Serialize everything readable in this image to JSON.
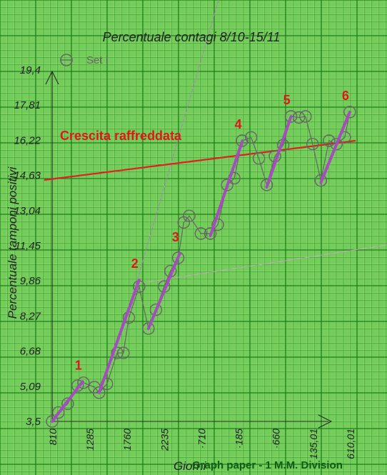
{
  "chart_data": {
    "type": "scatter",
    "title": "Percentuale contagi 8/10-15/11",
    "xlabel": "Giorni",
    "ylabel": "Percentuale tamponi positivi",
    "legend": {
      "label": "Set I",
      "position": "top-left"
    },
    "x_ticks": [
      "810",
      "1285",
      "1760",
      "2235",
      "2710",
      "3185",
      "3660",
      "4135,01",
      "4610,01"
    ],
    "x_tick_display": [
      "810",
      "1285",
      "1760",
      "2235",
      "·710",
      "·185",
      "·660",
      "135,01",
      "610,01"
    ],
    "y_ticks": [
      "3,5",
      "5,09",
      "6,68",
      "8,27",
      "9,86",
      "11,45",
      "13,04",
      "14,63",
      "16,22",
      "17,81",
      "19,4"
    ],
    "xlim": [
      810,
      5085
    ],
    "ylim": [
      3.5,
      19.4
    ],
    "grid": true,
    "series": [
      {
        "name": "Set I",
        "color": "#666666",
        "marker": "open-circle",
        "points": [
          [
            810,
            3.5
          ],
          [
            890,
            3.9
          ],
          [
            1010,
            4.3
          ],
          [
            1135,
            5.12
          ],
          [
            1210,
            5.25
          ],
          [
            1350,
            5.05
          ],
          [
            1410,
            4.8
          ],
          [
            1510,
            5.2
          ],
          [
            1640,
            6.6
          ],
          [
            1720,
            6.6
          ],
          [
            1790,
            8.2
          ],
          [
            1920,
            9.6
          ],
          [
            2040,
            7.7
          ],
          [
            2135,
            8.55
          ],
          [
            2240,
            9.6
          ],
          [
            2320,
            10.3
          ],
          [
            2420,
            10.9
          ],
          [
            2490,
            12.5
          ],
          [
            2560,
            12.8
          ],
          [
            2710,
            12.0
          ],
          [
            2830,
            12.0
          ],
          [
            2925,
            12.4
          ],
          [
            3045,
            14.2
          ],
          [
            3135,
            14.5
          ],
          [
            3235,
            16.2
          ],
          [
            3350,
            16.35
          ],
          [
            3450,
            15.4
          ],
          [
            3550,
            14.2
          ],
          [
            3655,
            15.5
          ],
          [
            3760,
            16.0
          ],
          [
            3860,
            17.3
          ],
          [
            3960,
            17.25
          ],
          [
            4045,
            17.3
          ],
          [
            4135,
            16.05
          ],
          [
            4240,
            14.4
          ],
          [
            4345,
            16.2
          ],
          [
            4440,
            16.05
          ],
          [
            4545,
            16.35
          ],
          [
            4610,
            17.5
          ]
        ]
      }
    ],
    "trend_line": {
      "label": "Crescita raffreddata",
      "color": "#e02020",
      "from": [
        0,
        14.4
      ],
      "to": [
        5050,
        16.1
      ]
    },
    "segments": [
      {
        "label": "1",
        "from": [
          810,
          3.5
        ],
        "to": [
          1200,
          5.3
        ]
      },
      {
        "label": "2",
        "from": [
          1410,
          4.8
        ],
        "to": [
          1920,
          9.9
        ]
      },
      {
        "label": "3",
        "from": [
          2040,
          7.7
        ],
        "to": [
          2440,
          11.1
        ]
      },
      {
        "label": "4",
        "from": [
          2830,
          11.9
        ],
        "to": [
          3240,
          16.2
        ]
      },
      {
        "label": "5",
        "from": [
          3550,
          14.1
        ],
        "to": [
          3860,
          17.3
        ]
      },
      {
        "label": "6",
        "from": [
          4240,
          14.3
        ],
        "to": [
          4610,
          17.5
        ]
      }
    ],
    "segment_color": "#a64bc0",
    "footer": "Graph paper - 1 M.M. Division"
  }
}
